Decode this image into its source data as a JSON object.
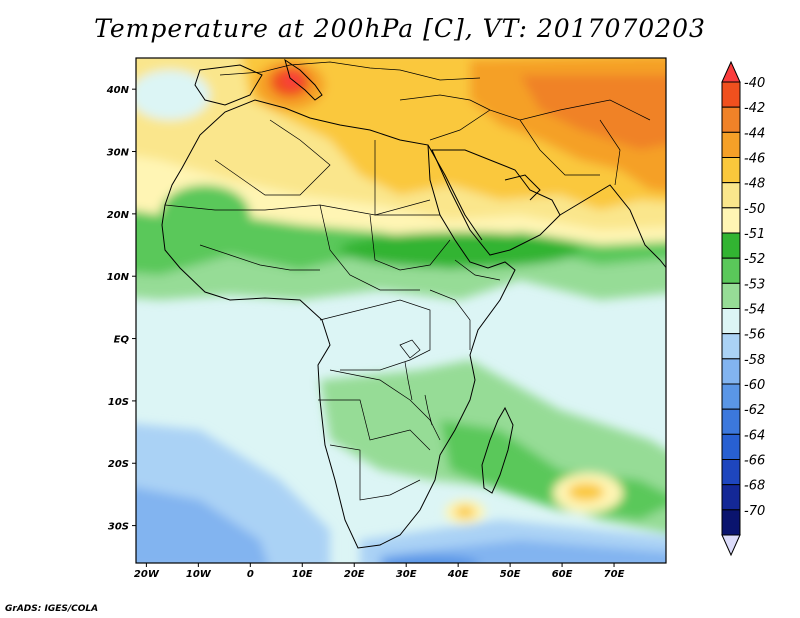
{
  "title": "Temperature at 200hPa [C], VT: 2017070203",
  "credit": "GrADS: IGES/COLA",
  "map": {
    "lon_range": [
      -22,
      80
    ],
    "lat_range": [
      -36,
      45
    ],
    "x_ticks": [
      {
        "lon": -20,
        "label": "20W"
      },
      {
        "lon": -10,
        "label": "10W"
      },
      {
        "lon": 0,
        "label": "0"
      },
      {
        "lon": 10,
        "label": "10E"
      },
      {
        "lon": 20,
        "label": "20E"
      },
      {
        "lon": 30,
        "label": "30E"
      },
      {
        "lon": 40,
        "label": "40E"
      },
      {
        "lon": 50,
        "label": "50E"
      },
      {
        "lon": 60,
        "label": "60E"
      },
      {
        "lon": 70,
        "label": "70E"
      }
    ],
    "y_ticks": [
      {
        "lat": 40,
        "label": "40N"
      },
      {
        "lat": 30,
        "label": "30N"
      },
      {
        "lat": 20,
        "label": "20N"
      },
      {
        "lat": 10,
        "label": "10N"
      },
      {
        "lat": 0,
        "label": "EQ"
      },
      {
        "lat": -10,
        "label": "10S"
      },
      {
        "lat": -20,
        "label": "20S"
      },
      {
        "lat": -30,
        "label": "30S"
      }
    ]
  },
  "colorbar": {
    "colors": [
      "#fa3c3c",
      "#f0501e",
      "#f08228",
      "#f5a028",
      "#fac83c",
      "#fae68c",
      "#fff5b4",
      "#32b432",
      "#5ac85a",
      "#96dc96",
      "#dcf5f5",
      "#aad2f5",
      "#82b4f0",
      "#5a96e6",
      "#3c78dc",
      "#2860d2",
      "#1e46be",
      "#142896",
      "#0a146e",
      "#dcdcfa"
    ],
    "labels": [
      "-40",
      "-42",
      "-44",
      "-46",
      "-48",
      "-50",
      "-51",
      "-52",
      "-53",
      "-54",
      "-56",
      "-58",
      "-60",
      "-62",
      "-64",
      "-66",
      "-68",
      "-70"
    ]
  }
}
